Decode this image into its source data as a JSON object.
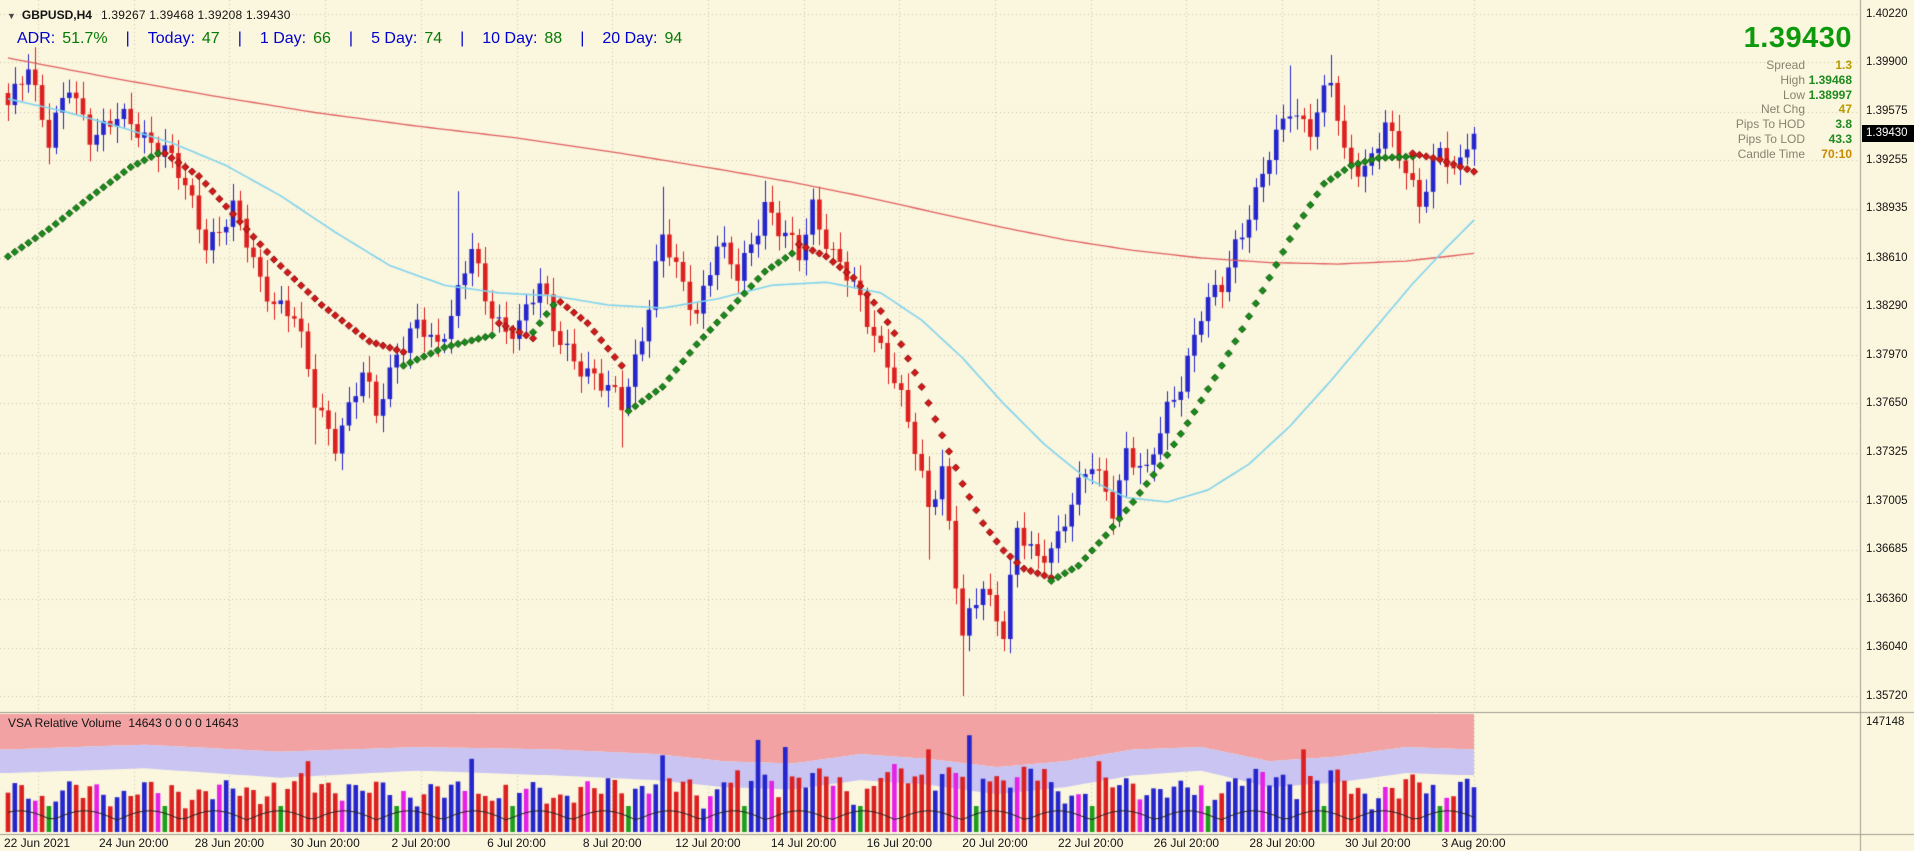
{
  "window": {
    "menu_icon": "▼",
    "symbol": "GBPUSD,H4",
    "ohlc": "1.39267 1.39468 1.39208 1.39430"
  },
  "adr_bar": {
    "separator": "|",
    "items": [
      {
        "label": "ADR:",
        "value": "51.7%"
      },
      {
        "label": "Today:",
        "value": "47"
      },
      {
        "label": "1 Day:",
        "value": "66"
      },
      {
        "label": "5 Day:",
        "value": "74"
      },
      {
        "label": "10 Day:",
        "value": "88"
      },
      {
        "label": "20 Day:",
        "value": "94"
      }
    ]
  },
  "info_panel": {
    "big_price": "1.39430",
    "rows": [
      {
        "label": "Spread",
        "value": "1.3",
        "color": "#B89B00"
      },
      {
        "label": "High",
        "value": "1.39468",
        "color": "#1F8A1F"
      },
      {
        "label": "Low",
        "value": "1.38997",
        "color": "#1F8A1F"
      },
      {
        "label": "Net Chg",
        "value": "47",
        "color": "#B89B00"
      },
      {
        "label": "Pips To HOD",
        "value": "3.8",
        "color": "#1F8A1F"
      },
      {
        "label": "Pips To LOD",
        "value": "43.3",
        "color": "#1F8A1F"
      },
      {
        "label": "Candle Time",
        "value": "70:10",
        "color": "#C88A00"
      }
    ]
  },
  "price_axis": {
    "ticks": [
      "1.40220",
      "1.39900",
      "1.39575",
      "1.39255",
      "1.38935",
      "1.38610",
      "1.38290",
      "1.37970",
      "1.37650",
      "1.37325",
      "1.37005",
      "1.36685",
      "1.36360",
      "1.36040",
      "1.35720"
    ],
    "current": "1.39430",
    "volume_scale": "147148"
  },
  "time_axis": {
    "labels": [
      "22 Jun 2021",
      "24 Jun 20:00",
      "28 Jun 20:00",
      "30 Jun 20:00",
      "2 Jul 20:00",
      "6 Jul 20:00",
      "8 Jul 20:00",
      "12 Jul 20:00",
      "14 Jul 20:00",
      "16 Jul 20:00",
      "20 Jul 20:00",
      "22 Jul 20:00",
      "26 Jul 20:00",
      "28 Jul 20:00",
      "30 Jul 20:00",
      "3 Aug 20:00"
    ]
  },
  "volume_pane": {
    "title": "VSA Relative Volume",
    "values": "14643 0 0 0 0 14643"
  },
  "chart_data": {
    "type": "candlestick",
    "symbol": "GBPUSD",
    "timeframe": "H4",
    "title": "GBPUSD,H4",
    "y_range": [
      1.3572,
      1.4022
    ],
    "y_ticks": [
      "1.40220",
      "1.39900",
      "1.39575",
      "1.39255",
      "1.38935",
      "1.38610",
      "1.38290",
      "1.37970",
      "1.37650",
      "1.37325",
      "1.37005",
      "1.36685",
      "1.36360",
      "1.36040",
      "1.35720"
    ],
    "x_ticks": [
      "22 Jun 2021",
      "24 Jun 20:00",
      "28 Jun 20:00",
      "30 Jun 20:00",
      "2 Jul 20:00",
      "6 Jul 20:00",
      "8 Jul 20:00",
      "12 Jul 20:00",
      "14 Jul 20:00",
      "16 Jul 20:00",
      "20 Jul 20:00",
      "22 Jul 20:00",
      "26 Jul 20:00",
      "28 Jul 20:00",
      "30 Jul 20:00",
      "3 Aug 20:00"
    ],
    "candle_count": 216,
    "last_price": 1.3943,
    "colors": {
      "background": "#FBF6DE",
      "grid": "#CDC7B0",
      "bull": "#2525CD",
      "bear": "#DC2020",
      "trend_up": "#1C8A1C",
      "trend_down": "#D41919",
      "ma_slow": "#E06060",
      "ma_fast": "#7FD4EE",
      "vol_band_outer": "#F2A2A2",
      "vol_band_inner": "#C9C4F2",
      "vol_bull": "#2525CD",
      "vol_bear": "#DC2020",
      "vol_climax": "#E620E6",
      "vol_low": "#1D9E1D",
      "vol_avg_line": "#222222",
      "price_tag_bg": "#000000",
      "price_tag_text": "#FFFFFF"
    },
    "close_anchors": [
      [
        0,
        1.3958
      ],
      [
        3,
        1.3992
      ],
      [
        6,
        1.3938
      ],
      [
        9,
        1.3972
      ],
      [
        12,
        1.3945
      ],
      [
        16,
        1.3952
      ],
      [
        20,
        1.3942
      ],
      [
        23,
        1.3935
      ],
      [
        26,
        1.3905
      ],
      [
        29,
        1.3872
      ],
      [
        33,
        1.3893
      ],
      [
        37,
        1.3845
      ],
      [
        42,
        1.3822
      ],
      [
        45,
        1.3765
      ],
      [
        48,
        1.3742
      ],
      [
        52,
        1.3782
      ],
      [
        54,
        1.3758
      ],
      [
        57,
        1.3802
      ],
      [
        60,
        1.3815
      ],
      [
        63,
        1.38
      ],
      [
        66,
        1.3842
      ],
      [
        68,
        1.387
      ],
      [
        70,
        1.3828
      ],
      [
        73,
        1.3812
      ],
      [
        76,
        1.3828
      ],
      [
        78,
        1.3842
      ],
      [
        80,
        1.3812
      ],
      [
        84,
        1.3792
      ],
      [
        87,
        1.3775
      ],
      [
        90,
        1.3765
      ],
      [
        93,
        1.3812
      ],
      [
        96,
        1.3872
      ],
      [
        99,
        1.3843
      ],
      [
        101,
        1.3828
      ],
      [
        104,
        1.3868
      ],
      [
        107,
        1.3848
      ],
      [
        111,
        1.3898
      ],
      [
        113,
        1.3878
      ],
      [
        116,
        1.3862
      ],
      [
        118,
        1.3898
      ],
      [
        121,
        1.3862
      ],
      [
        125,
        1.3832
      ],
      [
        129,
        1.3795
      ],
      [
        132,
        1.375
      ],
      [
        135,
        1.3698
      ],
      [
        137,
        1.3725
      ],
      [
        140,
        1.3608
      ],
      [
        143,
        1.3645
      ],
      [
        146,
        1.3618
      ],
      [
        148,
        1.368
      ],
      [
        151,
        1.3658
      ],
      [
        154,
        1.368
      ],
      [
        156,
        1.3702
      ],
      [
        159,
        1.3722
      ],
      [
        162,
        1.3698
      ],
      [
        164,
        1.3735
      ],
      [
        167,
        1.3715
      ],
      [
        170,
        1.3762
      ],
      [
        172,
        1.3782
      ],
      [
        175,
        1.3822
      ],
      [
        178,
        1.3842
      ],
      [
        180,
        1.3872
      ],
      [
        183,
        1.3902
      ],
      [
        186,
        1.3938
      ],
      [
        188,
        1.3962
      ],
      [
        191,
        1.3948
      ],
      [
        194,
        1.3975
      ],
      [
        196,
        1.3928
      ],
      [
        199,
        1.3922
      ],
      [
        202,
        1.3945
      ],
      [
        205,
        1.3918
      ],
      [
        207,
        1.3902
      ],
      [
        210,
        1.3932
      ],
      [
        212,
        1.3912
      ],
      [
        215,
        1.3943
      ]
    ],
    "wick_spikes": [
      {
        "i": 4,
        "high": 1.4
      },
      {
        "i": 45,
        "low": 1.3738
      },
      {
        "i": 48,
        "low": 1.3727
      },
      {
        "i": 66,
        "high": 1.3905
      },
      {
        "i": 90,
        "low": 1.3736
      },
      {
        "i": 96,
        "high": 1.3908
      },
      {
        "i": 111,
        "high": 1.3912
      },
      {
        "i": 135,
        "low": 1.3662
      },
      {
        "i": 140,
        "low": 1.3572
      },
      {
        "i": 146,
        "low": 1.3606
      },
      {
        "i": 188,
        "high": 1.3988
      },
      {
        "i": 194,
        "high": 1.3995
      }
    ],
    "trend_segments": [
      {
        "color": "up",
        "points": [
          [
            0,
            1.3862
          ],
          [
            6,
            1.388
          ],
          [
            12,
            1.3901
          ],
          [
            18,
            1.3921
          ],
          [
            22,
            1.393
          ]
        ]
      },
      {
        "color": "down",
        "points": [
          [
            23,
            1.393
          ],
          [
            28,
            1.3915
          ],
          [
            33,
            1.389
          ],
          [
            39,
            1.386
          ],
          [
            46,
            1.383
          ],
          [
            53,
            1.3806
          ],
          [
            58,
            1.3799
          ]
        ]
      },
      {
        "color": "up",
        "points": [
          [
            58,
            1.379
          ],
          [
            64,
            1.3802
          ],
          [
            71,
            1.381
          ]
        ]
      },
      {
        "color": "down",
        "points": [
          [
            72,
            1.3818
          ],
          [
            77,
            1.3808
          ]
        ]
      },
      {
        "color": "up",
        "points": [
          [
            77,
            1.3812
          ],
          [
            80,
            1.383
          ]
        ]
      },
      {
        "color": "down",
        "points": [
          [
            81,
            1.3832
          ],
          [
            85,
            1.3818
          ],
          [
            90,
            1.379
          ]
        ]
      },
      {
        "color": "up",
        "points": [
          [
            91,
            1.376
          ],
          [
            96,
            1.3776
          ],
          [
            101,
            1.3804
          ],
          [
            106,
            1.3828
          ],
          [
            111,
            1.3852
          ],
          [
            115,
            1.3864
          ]
        ]
      },
      {
        "color": "down",
        "points": [
          [
            116,
            1.387
          ],
          [
            120,
            1.3862
          ],
          [
            124,
            1.3848
          ],
          [
            128,
            1.3826
          ],
          [
            131,
            1.3804
          ],
          [
            134,
            1.3776
          ],
          [
            137,
            1.3744
          ],
          [
            140,
            1.3712
          ],
          [
            143,
            1.3686
          ],
          [
            146,
            1.3668
          ],
          [
            149,
            1.3656
          ],
          [
            153,
            1.365
          ]
        ]
      },
      {
        "color": "up",
        "points": [
          [
            153,
            1.3648
          ],
          [
            157,
            1.3658
          ],
          [
            161,
            1.3678
          ],
          [
            165,
            1.37
          ],
          [
            169,
            1.3724
          ],
          [
            173,
            1.3752
          ],
          [
            177,
            1.3782
          ],
          [
            181,
            1.3814
          ],
          [
            185,
            1.3848
          ],
          [
            189,
            1.3882
          ],
          [
            193,
            1.391
          ],
          [
            197,
            1.3922
          ],
          [
            201,
            1.3927
          ],
          [
            206,
            1.3928
          ]
        ]
      },
      {
        "color": "down",
        "points": [
          [
            206,
            1.393
          ],
          [
            210,
            1.3926
          ],
          [
            215,
            1.3918
          ]
        ]
      }
    ],
    "ma_slow": [
      [
        0,
        1.3993
      ],
      [
        15,
        1.398
      ],
      [
        30,
        1.3968
      ],
      [
        45,
        1.3957
      ],
      [
        60,
        1.3948
      ],
      [
        75,
        1.394
      ],
      [
        90,
        1.393
      ],
      [
        105,
        1.3919
      ],
      [
        115,
        1.3911
      ],
      [
        125,
        1.3902
      ],
      [
        135,
        1.3892
      ],
      [
        145,
        1.3882
      ],
      [
        155,
        1.3873
      ],
      [
        165,
        1.3866
      ],
      [
        175,
        1.3861
      ],
      [
        185,
        1.3858
      ],
      [
        195,
        1.3857
      ],
      [
        205,
        1.3859
      ],
      [
        215,
        1.3864
      ]
    ],
    "ma_fast": [
      [
        0,
        1.3966
      ],
      [
        8,
        1.3958
      ],
      [
        16,
        1.3948
      ],
      [
        24,
        1.3937
      ],
      [
        32,
        1.3922
      ],
      [
        40,
        1.3902
      ],
      [
        48,
        1.3878
      ],
      [
        56,
        1.3856
      ],
      [
        64,
        1.3843
      ],
      [
        72,
        1.3838
      ],
      [
        80,
        1.3836
      ],
      [
        88,
        1.383
      ],
      [
        96,
        1.3828
      ],
      [
        104,
        1.3834
      ],
      [
        112,
        1.3843
      ],
      [
        120,
        1.3845
      ],
      [
        128,
        1.3838
      ],
      [
        134,
        1.382
      ],
      [
        140,
        1.3795
      ],
      [
        146,
        1.3765
      ],
      [
        152,
        1.3738
      ],
      [
        158,
        1.3716
      ],
      [
        164,
        1.3703
      ],
      [
        170,
        1.37
      ],
      [
        176,
        1.3708
      ],
      [
        182,
        1.3725
      ],
      [
        188,
        1.375
      ],
      [
        194,
        1.378
      ],
      [
        200,
        1.3812
      ],
      [
        206,
        1.3844
      ],
      [
        211,
        1.3868
      ],
      [
        215,
        1.3886
      ]
    ],
    "volume": {
      "max_scale": 147148,
      "wave": {
        "base": 0.16,
        "a1": 0.15,
        "f1": 0.83,
        "p1": 0.3,
        "a2": 0.13,
        "f2": 0.29,
        "p2": 1.7
      },
      "boosts": [
        {
          "from": 38,
          "to": 50,
          "add": 0.06
        },
        {
          "from": 88,
          "to": 100,
          "add": 0.05
        },
        {
          "from": 105,
          "to": 122,
          "add": 0.1
        },
        {
          "from": 128,
          "to": 152,
          "add": 0.14
        },
        {
          "from": 158,
          "to": 170,
          "add": 0.04
        },
        {
          "from": 178,
          "to": 196,
          "add": 0.1
        },
        {
          "from": 205,
          "to": 215,
          "add": 0.05
        }
      ],
      "spikes": [
        {
          "i": 44,
          "h": 0.6
        },
        {
          "i": 68,
          "h": 0.62
        },
        {
          "i": 96,
          "h": 0.65
        },
        {
          "i": 110,
          "h": 0.78
        },
        {
          "i": 114,
          "h": 0.72
        },
        {
          "i": 135,
          "h": 0.7
        },
        {
          "i": 141,
          "h": 0.82
        },
        {
          "i": 160,
          "h": 0.6
        },
        {
          "i": 190,
          "h": 0.7
        }
      ],
      "band_outer_edge": [
        [
          0,
          0.3
        ],
        [
          20,
          0.26
        ],
        [
          40,
          0.32
        ],
        [
          60,
          0.28
        ],
        [
          80,
          0.3
        ],
        [
          95,
          0.34
        ],
        [
          105,
          0.4
        ],
        [
          115,
          0.42
        ],
        [
          125,
          0.34
        ],
        [
          135,
          0.38
        ],
        [
          145,
          0.45
        ],
        [
          155,
          0.4
        ],
        [
          165,
          0.3
        ],
        [
          175,
          0.28
        ],
        [
          185,
          0.4
        ],
        [
          195,
          0.36
        ],
        [
          205,
          0.28
        ],
        [
          215,
          0.3
        ]
      ],
      "band_inner_edge": [
        [
          0,
          0.5
        ],
        [
          20,
          0.46
        ],
        [
          40,
          0.54
        ],
        [
          60,
          0.48
        ],
        [
          80,
          0.52
        ],
        [
          95,
          0.56
        ],
        [
          105,
          0.62
        ],
        [
          115,
          0.64
        ],
        [
          125,
          0.56
        ],
        [
          135,
          0.6
        ],
        [
          145,
          0.68
        ],
        [
          155,
          0.62
        ],
        [
          165,
          0.52
        ],
        [
          175,
          0.48
        ],
        [
          185,
          0.62
        ],
        [
          195,
          0.58
        ],
        [
          205,
          0.5
        ],
        [
          215,
          0.52
        ]
      ],
      "avg_line": {
        "base": 0.1,
        "amp": 0.08,
        "freq": 0.33,
        "phase": 1.0
      }
    }
  }
}
